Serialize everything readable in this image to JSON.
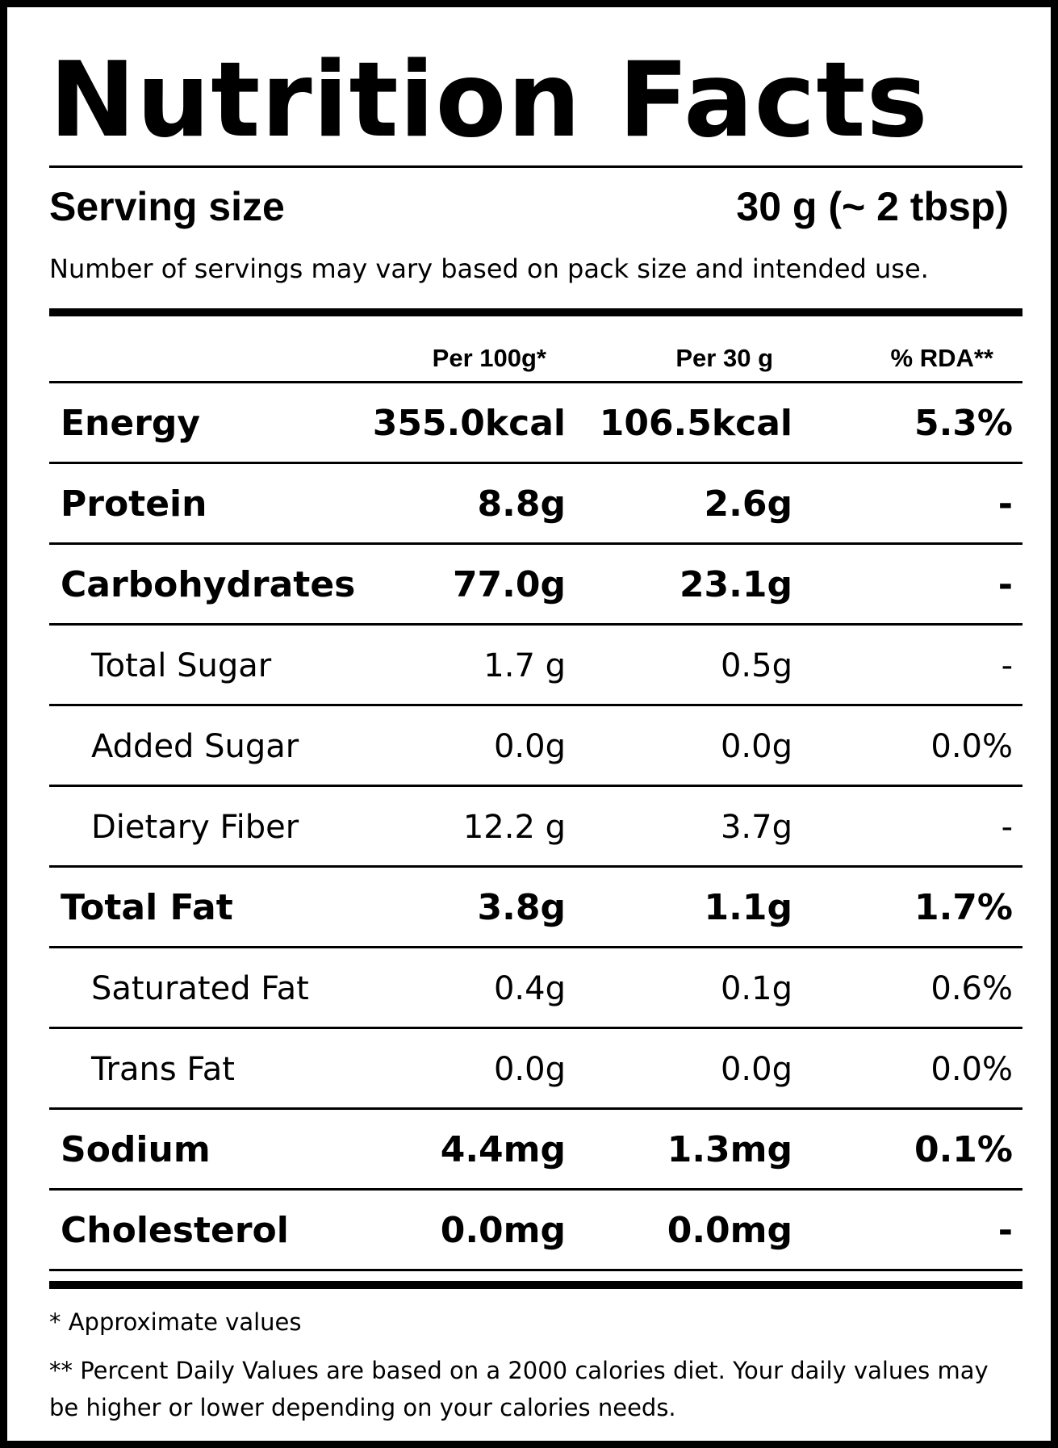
{
  "title": "Nutrition Facts",
  "serving": {
    "label": "Serving size",
    "value": "30 g (~ 2 tbsp)",
    "note": "Number of servings may vary based on pack size and intended use."
  },
  "columns": {
    "per100": "Per 100g*",
    "perServing": "Per 30 g",
    "rda": "% RDA**"
  },
  "rows": [
    {
      "name": "Energy",
      "per100": "355.0kcal",
      "perServing": "106.5kcal",
      "rda": "5.3%",
      "style": "main"
    },
    {
      "name": "Protein",
      "per100": "8.8g",
      "perServing": "2.6g",
      "rda": "-",
      "style": "main"
    },
    {
      "name": "Carbohydrates",
      "per100": "77.0g",
      "perServing": "23.1g",
      "rda": "-",
      "style": "main"
    },
    {
      "name": "Total Sugar",
      "per100": "1.7 g",
      "perServing": "0.5g",
      "rda": "-",
      "style": "sub"
    },
    {
      "name": "Added Sugar",
      "per100": "0.0g",
      "perServing": "0.0g",
      "rda": "0.0%",
      "style": "sub"
    },
    {
      "name": "Dietary Fiber",
      "per100": "12.2 g",
      "perServing": "3.7g",
      "rda": "-",
      "style": "sub"
    },
    {
      "name": "Total Fat",
      "per100": "3.8g",
      "perServing": "1.1g",
      "rda": "1.7%",
      "style": "main"
    },
    {
      "name": "Saturated Fat",
      "per100": "0.4g",
      "perServing": "0.1g",
      "rda": "0.6%",
      "style": "sub"
    },
    {
      "name": "Trans Fat",
      "per100": "0.0g",
      "perServing": "0.0g",
      "rda": "0.0%",
      "style": "sub"
    },
    {
      "name": "Sodium",
      "per100": "4.4mg",
      "perServing": "1.3mg",
      "rda": "0.1%",
      "style": "main"
    },
    {
      "name": "Cholesterol",
      "per100": "0.0mg",
      "perServing": "0.0mg",
      "rda": "-",
      "style": "main"
    }
  ],
  "footnotes": {
    "approx": "* Approximate values",
    "rda": "** Percent Daily Values are based on a 2000 calories diet. Your daily values may be higher or lower depending on your calories needs."
  }
}
